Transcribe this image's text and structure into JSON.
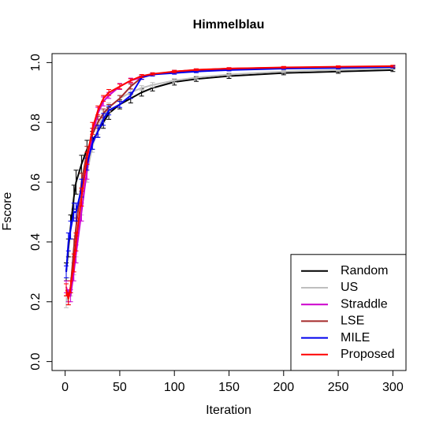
{
  "chart_data": {
    "type": "line",
    "title": "Himmelblau",
    "x_label": "Iteration",
    "y_label": "Fscore",
    "x": [
      1,
      3,
      5,
      8,
      10,
      15,
      20,
      25,
      30,
      35,
      40,
      50,
      60,
      70,
      80,
      100,
      120,
      150,
      200,
      250,
      300
    ],
    "xlim": [
      -12,
      312
    ],
    "xticks": [
      0,
      50,
      100,
      150,
      200,
      250,
      300
    ],
    "ylim": [
      -0.03,
      1.03
    ],
    "yticks": [
      {
        "value": 0,
        "label": "0.0"
      },
      0.2,
      0.4,
      0.6,
      0.8,
      {
        "value": 1,
        "label": "1.0"
      }
    ],
    "legend": "bottomright",
    "series": [
      {
        "name": "Random",
        "color": "#000000",
        "values": [
          0.3,
          0.38,
          0.45,
          0.55,
          0.6,
          0.66,
          0.71,
          0.74,
          0.77,
          0.8,
          0.83,
          0.86,
          0.88,
          0.9,
          0.915,
          0.935,
          0.945,
          0.955,
          0.965,
          0.97,
          0.975
        ],
        "errors": [
          0.03,
          0.03,
          0.04,
          0.04,
          0.04,
          0.03,
          0.03,
          0.03,
          0.02,
          0.02,
          0.02,
          0.015,
          0.015,
          0.012,
          0.01,
          0.01,
          0.008,
          0.008,
          0.006,
          0.006,
          0.005
        ]
      },
      {
        "name": "US",
        "color": "#bebebe",
        "values": [
          0.2,
          0.22,
          0.25,
          0.32,
          0.38,
          0.52,
          0.63,
          0.72,
          0.78,
          0.82,
          0.85,
          0.88,
          0.9,
          0.915,
          0.925,
          0.94,
          0.95,
          0.96,
          0.97,
          0.975,
          0.98
        ],
        "errors": [
          0.02,
          0.02,
          0.03,
          0.03,
          0.03,
          0.03,
          0.03,
          0.02,
          0.02,
          0.02,
          0.015,
          0.01,
          0.01,
          0.008,
          0.008,
          0.006,
          0.005,
          0.005,
          0.004,
          0.004,
          0.003
        ]
      },
      {
        "name": "Straddle",
        "color": "#cc00cc",
        "values": [
          0.25,
          0.22,
          0.22,
          0.3,
          0.36,
          0.5,
          0.64,
          0.76,
          0.83,
          0.87,
          0.89,
          0.92,
          0.94,
          0.95,
          0.96,
          0.97,
          0.975,
          0.98,
          0.983,
          0.985,
          0.987
        ],
        "errors": [
          0.02,
          0.02,
          0.02,
          0.03,
          0.03,
          0.03,
          0.03,
          0.02,
          0.02,
          0.015,
          0.01,
          0.01,
          0.008,
          0.006,
          0.005,
          0.004,
          0.004,
          0.003,
          0.003,
          0.003,
          0.003
        ]
      },
      {
        "name": "LSE",
        "color": "#a52a2a",
        "values": [
          0.24,
          0.21,
          0.25,
          0.38,
          0.45,
          0.6,
          0.7,
          0.76,
          0.8,
          0.83,
          0.85,
          0.88,
          0.92,
          0.95,
          0.96,
          0.97,
          0.975,
          0.98,
          0.983,
          0.985,
          0.987
        ],
        "errors": [
          0.02,
          0.02,
          0.02,
          0.03,
          0.03,
          0.03,
          0.02,
          0.02,
          0.02,
          0.015,
          0.01,
          0.01,
          0.008,
          0.006,
          0.005,
          0.004,
          0.004,
          0.003,
          0.003,
          0.003,
          0.003
        ]
      },
      {
        "name": "MILE",
        "color": "#0000ee",
        "values": [
          0.3,
          0.4,
          0.44,
          0.5,
          0.5,
          0.58,
          0.66,
          0.73,
          0.77,
          0.81,
          0.84,
          0.86,
          0.89,
          0.95,
          0.96,
          0.965,
          0.97,
          0.975,
          0.98,
          0.982,
          0.985
        ],
        "errors": [
          0.02,
          0.03,
          0.03,
          0.03,
          0.03,
          0.03,
          0.02,
          0.02,
          0.02,
          0.02,
          0.015,
          0.01,
          0.01,
          0.006,
          0.005,
          0.004,
          0.004,
          0.003,
          0.003,
          0.003,
          0.003
        ]
      },
      {
        "name": "Proposed",
        "color": "#ff0000",
        "values": [
          0.24,
          0.21,
          0.25,
          0.33,
          0.4,
          0.55,
          0.68,
          0.78,
          0.84,
          0.88,
          0.9,
          0.92,
          0.94,
          0.955,
          0.962,
          0.97,
          0.976,
          0.98,
          0.984,
          0.986,
          0.988
        ],
        "errors": [
          0.02,
          0.02,
          0.02,
          0.03,
          0.03,
          0.03,
          0.02,
          0.02,
          0.015,
          0.01,
          0.01,
          0.008,
          0.006,
          0.005,
          0.004,
          0.004,
          0.003,
          0.003,
          0.003,
          0.003,
          0.003
        ]
      }
    ]
  }
}
